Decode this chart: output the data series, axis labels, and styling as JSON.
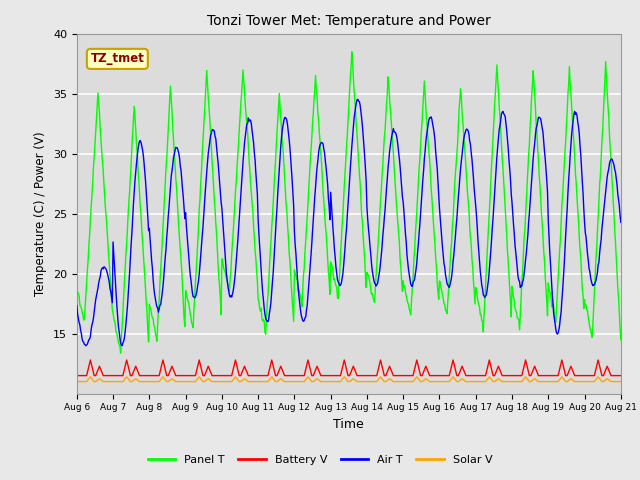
{
  "title": "Tonzi Tower Met: Temperature and Power",
  "xlabel": "Time",
  "ylabel": "Temperature (C) / Power (V)",
  "ylim": [
    10,
    40
  ],
  "yticks": [
    15,
    20,
    25,
    30,
    35,
    40
  ],
  "xtick_labels": [
    "Aug 6",
    "Aug 7",
    "Aug 8",
    "Aug 9",
    "Aug 10",
    "Aug 11",
    "Aug 12",
    "Aug 13",
    "Aug 14",
    "Aug 15",
    "Aug 16",
    "Aug 17",
    "Aug 18",
    "Aug 19",
    "Aug 20",
    "Aug 21"
  ],
  "legend_items": [
    "Panel T",
    "Battery V",
    "Air T",
    "Solar V"
  ],
  "legend_colors": [
    "#00FF00",
    "#FF0000",
    "#0000FF",
    "#FFA500"
  ],
  "panel_T_max_values": [
    35,
    34,
    35.5,
    37,
    37,
    35,
    36.5,
    38.5,
    36.5,
    36,
    35.5,
    37.5,
    37,
    37,
    37.5,
    33
  ],
  "panel_T_min_values": [
    16,
    13.5,
    14.5,
    15.5,
    18.5,
    15,
    17.5,
    18,
    17.5,
    16.5,
    16.5,
    15.5,
    15.5,
    16,
    14.5,
    16
  ],
  "air_T_max_values": [
    20.5,
    31,
    30.5,
    32,
    33,
    33,
    31,
    34.5,
    32,
    33,
    32,
    33.5,
    33,
    33.5,
    29.5,
    33
  ],
  "air_T_min_values": [
    14,
    14,
    17,
    18,
    18,
    16,
    16,
    19,
    19,
    19,
    19,
    18,
    19,
    15,
    19,
    20
  ],
  "battery_V_base": 11.5,
  "battery_V_peak": 12.8,
  "solar_V_base": 11.0,
  "solar_V_peak": 11.5,
  "fig_bg": "#E8E8E8",
  "plot_bg": "#DCDCDC",
  "annotation_text": "TZ_tmet",
  "annotation_color": "#8B0000",
  "annotation_bg": "#FFFFC0",
  "annotation_border": "#C8A000"
}
